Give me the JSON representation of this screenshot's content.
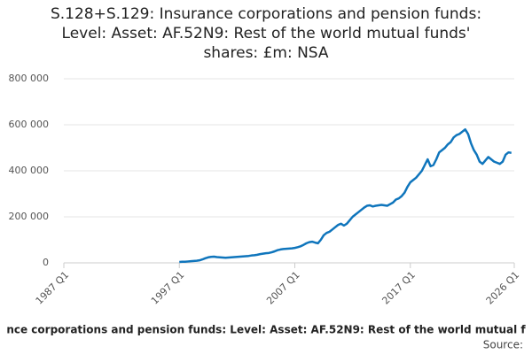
{
  "chart_data": {
    "type": "line",
    "title": [
      "S.128+S.129: Insurance corporations and pension funds:",
      "Level: Asset: AF.52N9: Rest of the world mutual funds'",
      "shares: £m: NSA"
    ],
    "subtitle": "nce corporations and pension funds: Level: Asset: AF.52N9: Rest of the world mutual f",
    "source": "Source:",
    "color": "#0f75bc",
    "grid": true,
    "xlim": [
      1987,
      2026
    ],
    "xticks": [
      {
        "value": 1987,
        "label": "1987 Q1"
      },
      {
        "value": 1997,
        "label": "1997 Q1"
      },
      {
        "value": 2007,
        "label": "2007 Q1"
      },
      {
        "value": 2017,
        "label": "2017 Q1"
      },
      {
        "value": 2026,
        "label": "2026 Q1"
      }
    ],
    "ylim": [
      0,
      800000
    ],
    "yticks": [
      0,
      {
        "value": 200000,
        "label": "200 000"
      },
      {
        "value": 400000,
        "label": "400 000"
      },
      {
        "value": 600000,
        "label": "600 000"
      },
      {
        "value": 800000,
        "label": "800 000"
      }
    ],
    "x": [
      1997,
      1997.25,
      1997.5,
      1997.75,
      1998,
      1998.25,
      1998.5,
      1998.75,
      1999,
      1999.25,
      1999.5,
      1999.75,
      2000,
      2000.25,
      2000.5,
      2000.75,
      2001,
      2001.25,
      2001.5,
      2001.75,
      2002,
      2002.25,
      2002.5,
      2002.75,
      2003,
      2003.25,
      2003.5,
      2003.75,
      2004,
      2004.25,
      2004.5,
      2004.75,
      2005,
      2005.25,
      2005.5,
      2005.75,
      2006,
      2006.25,
      2006.5,
      2006.75,
      2007,
      2007.25,
      2007.5,
      2007.75,
      2008,
      2008.25,
      2008.5,
      2008.75,
      2009,
      2009.25,
      2009.5,
      2009.75,
      2010,
      2010.25,
      2010.5,
      2010.75,
      2011,
      2011.25,
      2011.5,
      2011.75,
      2012,
      2012.25,
      2012.5,
      2012.75,
      2013,
      2013.25,
      2013.5,
      2013.75,
      2014,
      2014.25,
      2014.5,
      2014.75,
      2015,
      2015.25,
      2015.5,
      2015.75,
      2016,
      2016.25,
      2016.5,
      2016.75,
      2017,
      2017.25,
      2017.5,
      2017.75,
      2018,
      2018.25,
      2018.5,
      2018.75,
      2019,
      2019.25,
      2019.5,
      2019.75,
      2020,
      2020.25,
      2020.5,
      2020.75,
      2021,
      2021.25,
      2021.5,
      2021.75,
      2022,
      2022.25,
      2022.5,
      2022.75,
      2023,
      2023.25,
      2023.5,
      2023.75,
      2024,
      2024.25,
      2024.5,
      2024.75,
      2025,
      2025.25,
      2025.5,
      2025.75
    ],
    "values": [
      4000,
      5000,
      5000,
      6000,
      7000,
      8000,
      9000,
      11000,
      15000,
      20000,
      24000,
      26000,
      27000,
      25000,
      24000,
      23000,
      22000,
      23000,
      24000,
      25000,
      26000,
      27000,
      28000,
      29000,
      30000,
      32000,
      33000,
      35000,
      38000,
      40000,
      42000,
      43000,
      46000,
      50000,
      55000,
      58000,
      60000,
      61000,
      62000,
      63000,
      65000,
      68000,
      72000,
      78000,
      85000,
      90000,
      92000,
      88000,
      85000,
      100000,
      120000,
      130000,
      135000,
      145000,
      155000,
      165000,
      170000,
      162000,
      170000,
      185000,
      200000,
      210000,
      220000,
      230000,
      240000,
      248000,
      250000,
      245000,
      248000,
      250000,
      252000,
      250000,
      248000,
      255000,
      262000,
      275000,
      280000,
      290000,
      305000,
      330000,
      350000,
      360000,
      370000,
      385000,
      400000,
      425000,
      450000,
      420000,
      425000,
      450000,
      480000,
      490000,
      500000,
      515000,
      525000,
      545000,
      555000,
      560000,
      570000,
      580000,
      560000,
      520000,
      490000,
      470000,
      440000,
      430000,
      445000,
      460000,
      450000,
      440000,
      435000,
      430000,
      440000,
      470000,
      480000,
      478000
    ]
  }
}
